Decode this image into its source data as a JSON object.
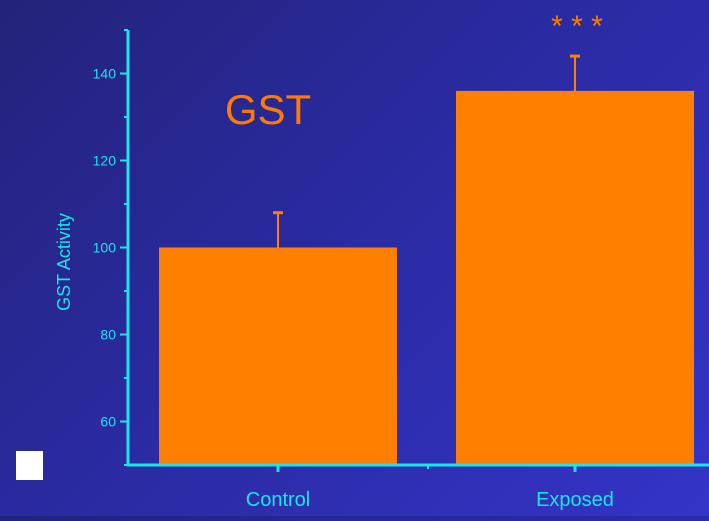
{
  "colors": {
    "axis": "#19e6e6",
    "bar": "#ff8000",
    "annotation": "#ff7a00",
    "background": "#2828a0"
  },
  "chart_data": {
    "type": "bar",
    "title": "GST",
    "xlabel": "",
    "ylabel": "GST Activity",
    "categories": [
      "Control",
      "Exposed"
    ],
    "values": [
      100,
      136
    ],
    "error": [
      8,
      8
    ],
    "ylim": [
      50,
      150
    ],
    "yticks": [
      60,
      80,
      100,
      120,
      140
    ],
    "annotation": "* * *",
    "grid": false
  }
}
